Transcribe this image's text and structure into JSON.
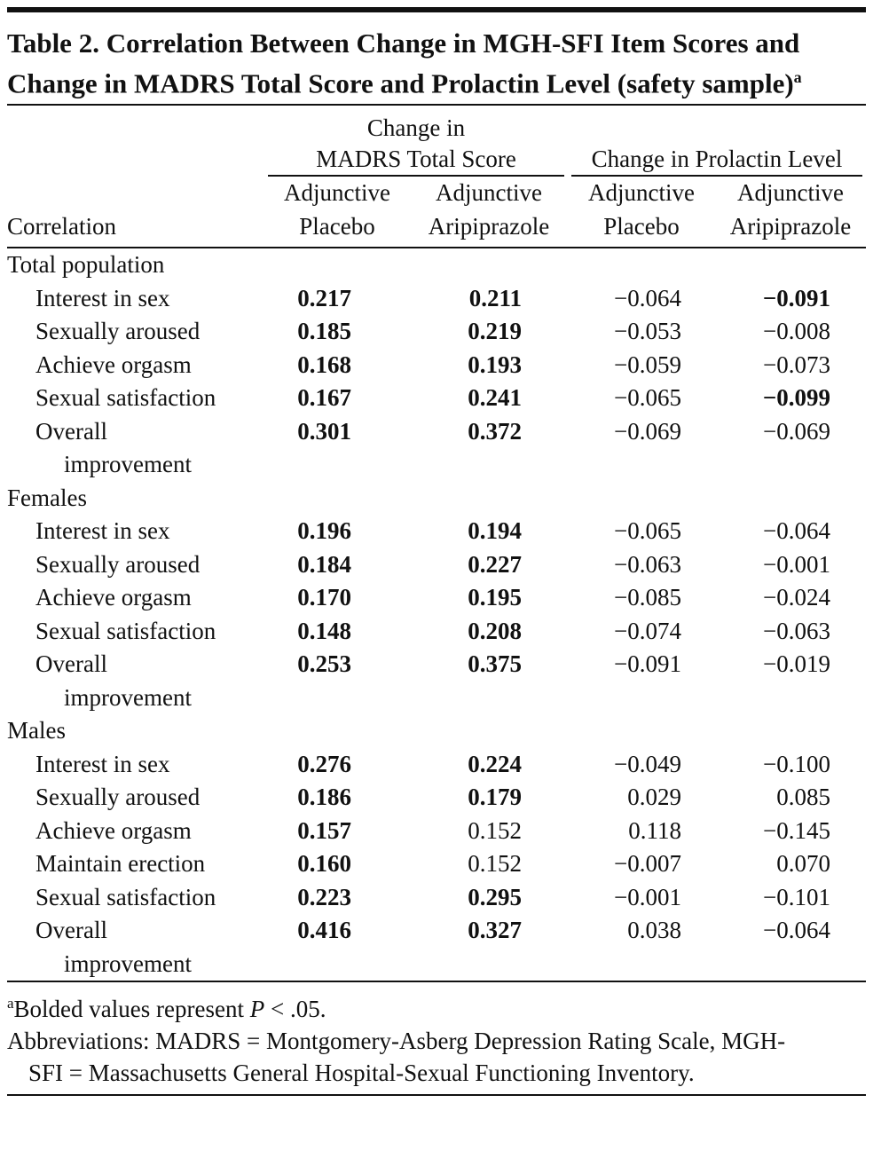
{
  "title": "Table 2. Correlation Between Change in MGH-SFI Item Scores and Change in MADRS Total Score and Prolactin Level (safety sample)",
  "title_note": "a",
  "header": {
    "row_label": "Correlation",
    "groups": [
      {
        "label": "Change in\nMADRS Total Score",
        "columns": [
          "Adjunctive\nPlacebo",
          "Adjunctive\nAripiprazole"
        ]
      },
      {
        "label": "Change in Prolactin Level",
        "columns": [
          "Adjunctive\nPlacebo",
          "Adjunctive\nAripiprazole"
        ]
      }
    ]
  },
  "sections": [
    {
      "label": "Total population",
      "rows": [
        {
          "label": "Interest in sex",
          "values": [
            "0.217",
            "0.211",
            "−0.064",
            "−0.091"
          ],
          "bold": [
            true,
            true,
            false,
            true
          ]
        },
        {
          "label": "Sexually aroused",
          "values": [
            "0.185",
            "0.219",
            "−0.053",
            "−0.008"
          ],
          "bold": [
            true,
            true,
            false,
            false
          ]
        },
        {
          "label": "Achieve orgasm",
          "values": [
            "0.168",
            "0.193",
            "−0.059",
            "−0.073"
          ],
          "bold": [
            true,
            true,
            false,
            false
          ]
        },
        {
          "label": "Sexual satisfaction",
          "values": [
            "0.167",
            "0.241",
            "−0.065",
            "−0.099"
          ],
          "bold": [
            true,
            true,
            false,
            true
          ]
        },
        {
          "label": "Overall\nimprovement",
          "values": [
            "0.301",
            "0.372",
            "−0.069",
            "−0.069"
          ],
          "bold": [
            true,
            true,
            false,
            false
          ]
        }
      ]
    },
    {
      "label": "Females",
      "rows": [
        {
          "label": "Interest in sex",
          "values": [
            "0.196",
            "0.194",
            "−0.065",
            "−0.064"
          ],
          "bold": [
            true,
            true,
            false,
            false
          ]
        },
        {
          "label": "Sexually aroused",
          "values": [
            "0.184",
            "0.227",
            "−0.063",
            "−0.001"
          ],
          "bold": [
            true,
            true,
            false,
            false
          ]
        },
        {
          "label": "Achieve orgasm",
          "values": [
            "0.170",
            "0.195",
            "−0.085",
            "−0.024"
          ],
          "bold": [
            true,
            true,
            false,
            false
          ]
        },
        {
          "label": "Sexual satisfaction",
          "values": [
            "0.148",
            "0.208",
            "−0.074",
            "−0.063"
          ],
          "bold": [
            true,
            true,
            false,
            false
          ]
        },
        {
          "label": "Overall\nimprovement",
          "values": [
            "0.253",
            "0.375",
            "−0.091",
            "−0.019"
          ],
          "bold": [
            true,
            true,
            false,
            false
          ]
        }
      ]
    },
    {
      "label": "Males",
      "rows": [
        {
          "label": "Interest in sex",
          "values": [
            "0.276",
            "0.224",
            "−0.049",
            "−0.100"
          ],
          "bold": [
            true,
            true,
            false,
            false
          ]
        },
        {
          "label": "Sexually aroused",
          "values": [
            "0.186",
            "0.179",
            "0.029",
            "0.085"
          ],
          "bold": [
            true,
            true,
            false,
            false
          ]
        },
        {
          "label": "Achieve orgasm",
          "values": [
            "0.157",
            "0.152",
            "0.118",
            "−0.145"
          ],
          "bold": [
            true,
            false,
            false,
            false
          ]
        },
        {
          "label": "Maintain erection",
          "values": [
            "0.160",
            "0.152",
            "−0.007",
            "0.070"
          ],
          "bold": [
            true,
            false,
            false,
            false
          ]
        },
        {
          "label": "Sexual satisfaction",
          "values": [
            "0.223",
            "0.295",
            "−0.001",
            "−0.101"
          ],
          "bold": [
            true,
            true,
            false,
            false
          ]
        },
        {
          "label": "Overall\nimprovement",
          "values": [
            "0.416",
            "0.327",
            "0.038",
            "−0.064"
          ],
          "bold": [
            true,
            true,
            false,
            false
          ]
        }
      ]
    }
  ],
  "footnotes": {
    "significance": {
      "marker": "a",
      "text": "Bolded values represent ",
      "symbol": "P",
      "rest": " < .05."
    },
    "abbreviations": "Abbreviations: MADRS = Montgomery-Asberg Depression Rating Scale, MGH-SFI = Massachusetts General Hospital-Sexual Functioning Inventory."
  }
}
